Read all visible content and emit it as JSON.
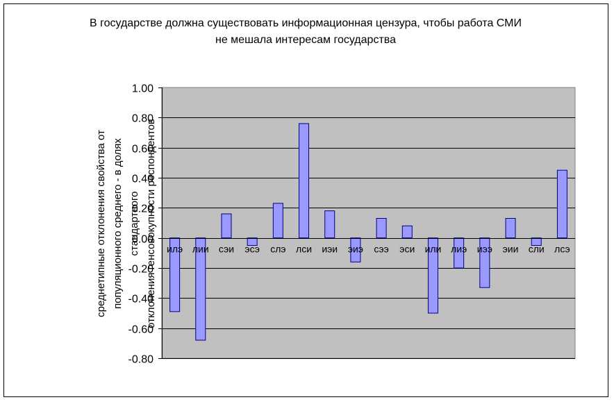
{
  "chart_data": {
    "type": "bar",
    "title": [
      "В государстве должна существовать информационная цензура, чтобы работа СМИ",
      "не мешала интересам государства"
    ],
    "ylabel": [
      "среднетипные отклонения свойства от",
      "популяционного среднего - в долях стандартного",
      "отклонения генсовокупности респондентов"
    ],
    "xlabel": "",
    "ylim": [
      -0.8,
      1.0
    ],
    "yticks": [
      "1.00",
      "0.80",
      "0.60",
      "0.40",
      "0.20",
      "0.00",
      "-0.20",
      "-0.40",
      "-0.60",
      "-0.80"
    ],
    "ytick_values": [
      1.0,
      0.8,
      0.6,
      0.4,
      0.2,
      0.0,
      -0.2,
      -0.4,
      -0.6,
      -0.8
    ],
    "categories": [
      "илэ",
      "лии",
      "сэи",
      "эсэ",
      "слэ",
      "лси",
      "иэи",
      "эиэ",
      "сээ",
      "эси",
      "или",
      "лиэ",
      "иээ",
      "эии",
      "сли",
      "лсэ"
    ],
    "values": [
      -0.49,
      -0.68,
      0.16,
      -0.05,
      0.23,
      0.76,
      0.18,
      -0.16,
      0.13,
      0.08,
      -0.5,
      -0.2,
      -0.33,
      0.13,
      -0.05,
      0.45
    ],
    "grid": true,
    "legend": "none",
    "colors": {
      "plot_bg": "#c0c0c0",
      "bar": "#9999ff",
      "bar_edge": "#000080",
      "grid": "#000000"
    }
  }
}
